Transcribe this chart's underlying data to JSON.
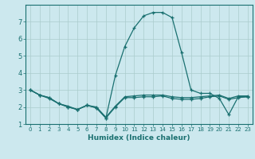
{
  "xlabel": "Humidex (Indice chaleur)",
  "ylabel": "",
  "bg_color": "#cce8ee",
  "grid_color": "#aacccc",
  "line_color": "#1a7070",
  "xlim": [
    -0.5,
    23.5
  ],
  "ylim": [
    1,
    8
  ],
  "yticks": [
    1,
    2,
    3,
    4,
    5,
    6,
    7
  ],
  "xticks": [
    0,
    1,
    2,
    3,
    4,
    5,
    6,
    7,
    8,
    9,
    10,
    11,
    12,
    13,
    14,
    15,
    16,
    17,
    18,
    19,
    20,
    21,
    22,
    23
  ],
  "line_peak": [
    3.0,
    2.7,
    2.55,
    2.2,
    2.0,
    1.85,
    2.1,
    1.95,
    1.35,
    3.85,
    5.55,
    6.65,
    7.35,
    7.55,
    7.55,
    7.25,
    5.2,
    3.0,
    2.8,
    2.8,
    2.5,
    1.55,
    2.6,
    2.6
  ],
  "line_high": [
    3.0,
    2.7,
    2.5,
    2.2,
    2.05,
    1.85,
    2.1,
    2.0,
    1.4,
    2.05,
    2.6,
    2.65,
    2.7,
    2.7,
    2.7,
    2.6,
    2.55,
    2.55,
    2.6,
    2.65,
    2.7,
    2.5,
    2.65,
    2.65
  ],
  "line_low": [
    3.0,
    2.7,
    2.55,
    2.2,
    2.0,
    1.85,
    2.1,
    1.95,
    1.35,
    2.0,
    2.55,
    2.55,
    2.6,
    2.6,
    2.65,
    2.5,
    2.45,
    2.45,
    2.5,
    2.6,
    2.65,
    2.45,
    2.55,
    2.6
  ]
}
